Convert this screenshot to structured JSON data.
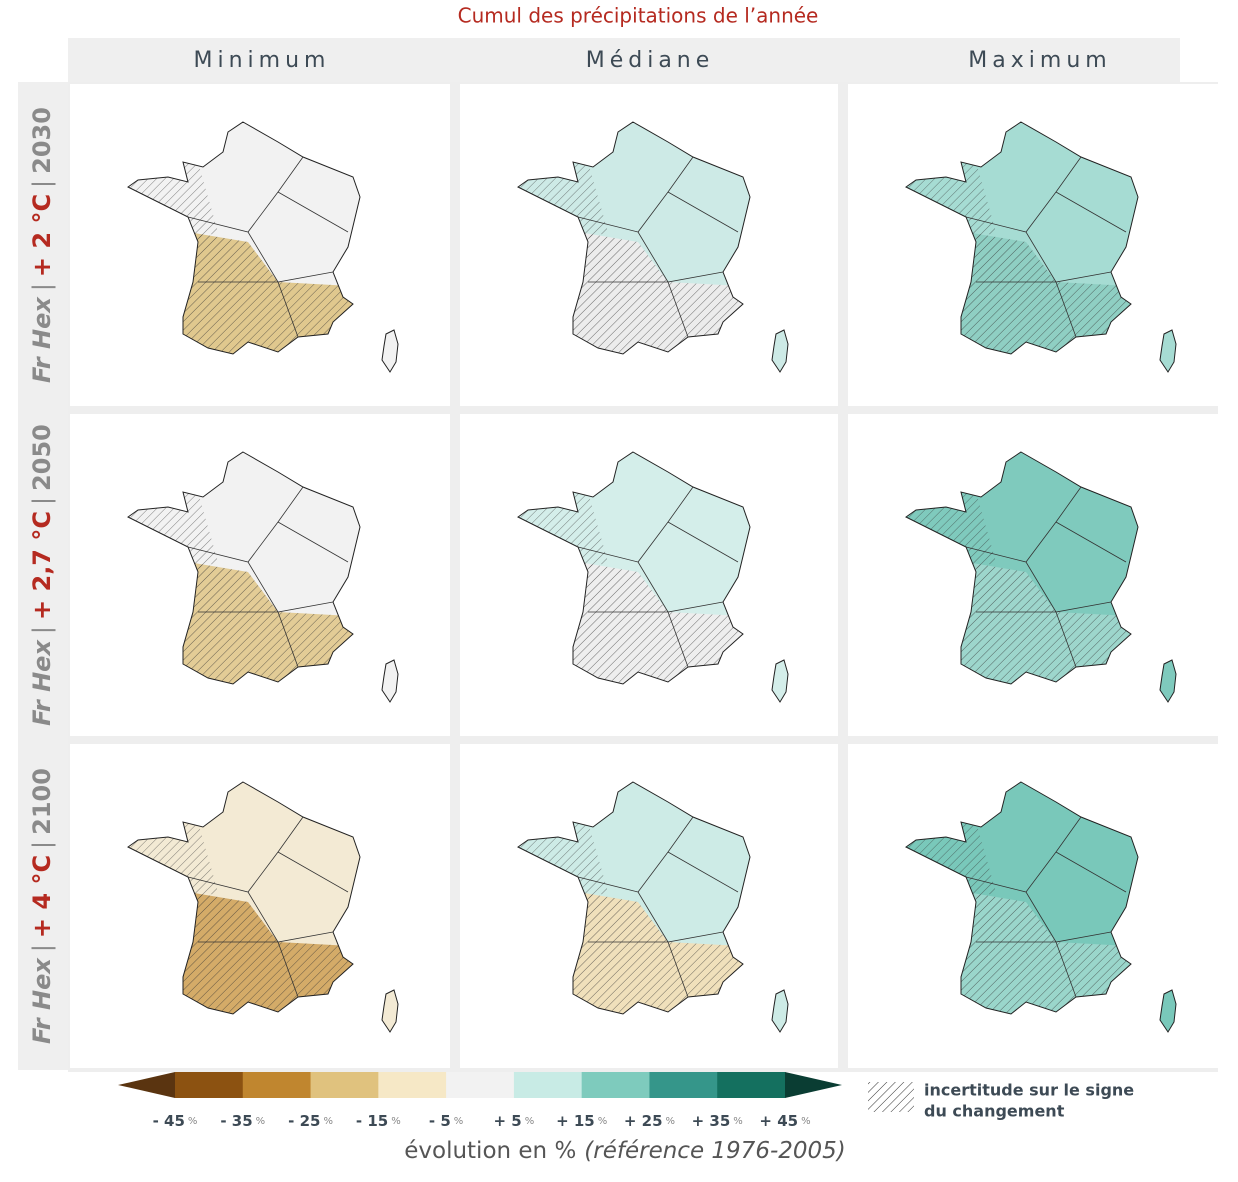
{
  "title": "Cumul des précipitations de l’année",
  "columns": [
    "Minimum",
    "Médiane",
    "Maximum"
  ],
  "separator": "|",
  "rows": [
    {
      "region": "Fr Hex",
      "warming": "+ 2 °C",
      "year": "2030",
      "fills": [
        {
          "north": "#f2f2f2",
          "south": "#e0c88e"
        },
        {
          "north": "#cdeae6",
          "south": "#ececec"
        },
        {
          "north": "#a6dcd3",
          "south": "#8fcfc3"
        }
      ]
    },
    {
      "region": "Fr Hex",
      "warming": "+ 2,7 °C",
      "year": "2050",
      "fills": [
        {
          "north": "#f2f2f2",
          "south": "#e3cc96"
        },
        {
          "north": "#d4eeea",
          "south": "#eeeeee"
        },
        {
          "north": "#7fcabd",
          "south": "#9dd6cc"
        }
      ]
    },
    {
      "region": "Fr Hex",
      "warming": "+ 4 °C",
      "year": "2100",
      "fills": [
        {
          "north": "#f3ead4",
          "south": "#d4ab68"
        },
        {
          "north": "#cdebe6",
          "south": "#f0e0bb"
        },
        {
          "north": "#79c8ba",
          "south": "#9ad6cb"
        }
      ]
    }
  ],
  "legend": {
    "colors": [
      "#5a3410",
      "#8c5211",
      "#c0862f",
      "#e0c27e",
      "#f6e8c6",
      "#f2f2f2",
      "#c8ebe5",
      "#7ecbbd",
      "#35968a",
      "#14705f",
      "#0a3d33"
    ],
    "ticks": [
      "- 45",
      "- 35",
      "- 25",
      "- 15",
      "- 5",
      "+ 5",
      "+ 15",
      "+ 25",
      "+ 35",
      "+ 45"
    ],
    "unit": "%",
    "hatch_note": [
      "incertitude sur le signe",
      "du changement"
    ],
    "axis_label": "évolution en %",
    "axis_reference": "(référence 1976-2005)"
  }
}
